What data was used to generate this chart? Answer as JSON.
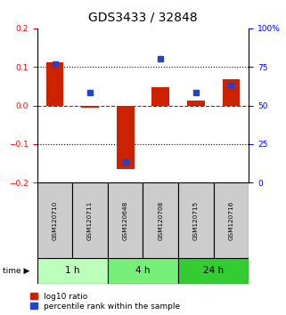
{
  "title": "GDS3433 / 32848",
  "samples": [
    "GSM120710",
    "GSM120711",
    "GSM120648",
    "GSM120708",
    "GSM120715",
    "GSM120716"
  ],
  "log10_ratio": [
    0.112,
    -0.005,
    -0.165,
    0.047,
    0.012,
    0.068
  ],
  "percentile_rank": [
    77,
    58.5,
    13.5,
    80.5,
    58.5,
    63
  ],
  "ylim_left": [
    -0.2,
    0.2
  ],
  "ylim_right": [
    0,
    100
  ],
  "yticks_left": [
    -0.2,
    -0.1,
    0.0,
    0.1,
    0.2
  ],
  "yticks_right": [
    0,
    25,
    50,
    75,
    100
  ],
  "ytick_labels_right": [
    "0",
    "25",
    "50",
    "75",
    "100%"
  ],
  "groups": [
    {
      "label": "1 h",
      "indices": [
        0,
        1
      ],
      "color": "#bbffbb"
    },
    {
      "label": "4 h",
      "indices": [
        2,
        3
      ],
      "color": "#77ee77"
    },
    {
      "label": "24 h",
      "indices": [
        4,
        5
      ],
      "color": "#33cc33"
    }
  ],
  "bar_color_red": "#cc2200",
  "bar_color_blue": "#2244cc",
  "zero_line_color": "#cc0000",
  "bar_width": 0.5,
  "sample_box_color": "#cccccc",
  "title_fontsize": 10,
  "tick_fontsize": 6.5,
  "legend_fontsize": 6.5,
  "label_fontsize": 8
}
